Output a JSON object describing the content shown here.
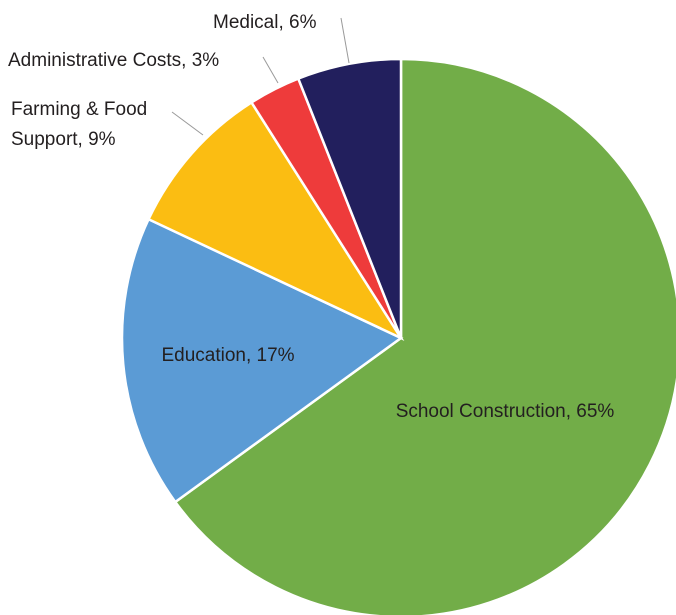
{
  "chart_data": {
    "type": "pie",
    "title": "",
    "start_angle_deg": 0,
    "direction": "clockwise",
    "legend": "none",
    "slices": [
      {
        "label": "School Construction",
        "value": 65,
        "color": "#72ad48",
        "label_text": "School Construction, 65%"
      },
      {
        "label": "Education",
        "value": 17,
        "color": "#5b9bd5",
        "label_text": "Education, 17%"
      },
      {
        "label": "Farming & Food Support",
        "value": 9,
        "color": "#fbbd12",
        "label_lines": [
          "Farming & Food",
          "Support, 9%"
        ]
      },
      {
        "label": "Administrative Costs",
        "value": 3,
        "color": "#ee3b3b",
        "label_text": "Administrative Costs, 3%"
      },
      {
        "label": "Medical",
        "value": 6,
        "color": "#221f5d",
        "label_text": "Medical, 6%"
      }
    ]
  }
}
